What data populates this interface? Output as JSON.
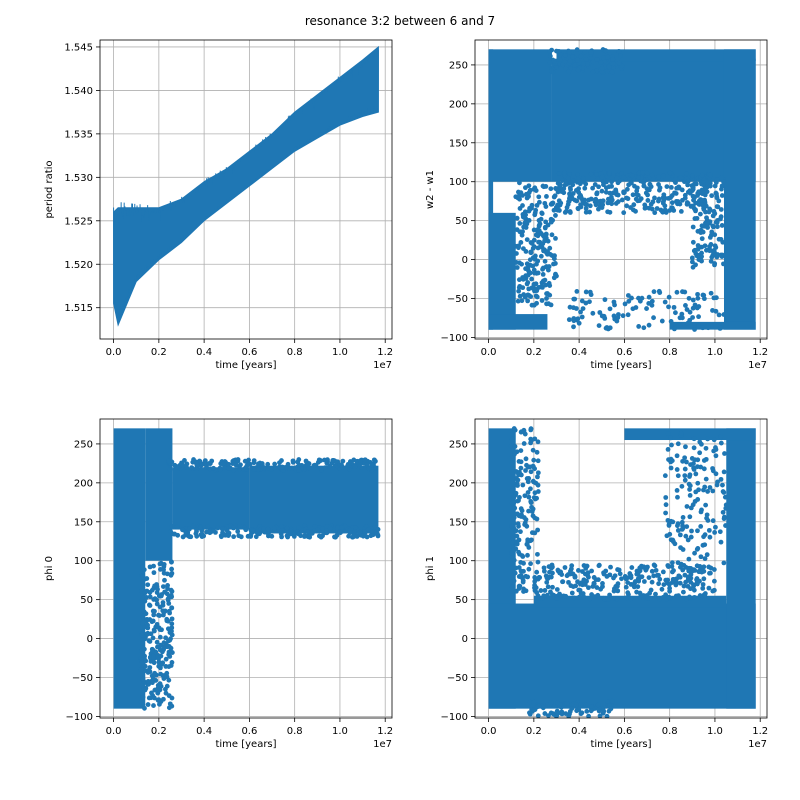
{
  "figure": {
    "title": "resonance 3:2 between 6 and 7"
  },
  "colors": {
    "series": "#1f77b4",
    "grid": "#b0b0b0",
    "axis": "#000000"
  },
  "chart_data": [
    {
      "id": "period-ratio",
      "type": "line",
      "title": "",
      "xlabel": "time [years]",
      "ylabel": "period ratio",
      "x_offset_label": "1e7",
      "xlim": [
        -0.06,
        1.23
      ],
      "ylim": [
        1.5114,
        1.5458
      ],
      "xticks": [
        0.0,
        0.2,
        0.4,
        0.6,
        0.8,
        1.0,
        1.2
      ],
      "xtick_labels": [
        "0.0",
        "0.2",
        "0.4",
        "0.6",
        "0.8",
        "1.0",
        "1.2"
      ],
      "yticks": [
        1.515,
        1.52,
        1.525,
        1.53,
        1.535,
        1.54,
        1.545
      ],
      "ytick_labels": [
        "1.515",
        "1.520",
        "1.525",
        "1.530",
        "1.535",
        "1.540",
        "1.545"
      ],
      "grid": true,
      "series": [
        {
          "envelope": [
            {
              "x": 0.0,
              "lo": 1.5155,
              "hi": 1.526
            },
            {
              "x": 0.02,
              "lo": 1.513,
              "hi": 1.5265
            },
            {
              "x": 0.1,
              "lo": 1.518,
              "hi": 1.5265
            },
            {
              "x": 0.2,
              "lo": 1.5205,
              "hi": 1.5265
            },
            {
              "x": 0.3,
              "lo": 1.5225,
              "hi": 1.5275
            },
            {
              "x": 0.4,
              "lo": 1.525,
              "hi": 1.5295
            },
            {
              "x": 0.5,
              "lo": 1.527,
              "hi": 1.531
            },
            {
              "x": 0.6,
              "lo": 1.529,
              "hi": 1.533
            },
            {
              "x": 0.7,
              "lo": 1.531,
              "hi": 1.535
            },
            {
              "x": 0.8,
              "lo": 1.533,
              "hi": 1.5375
            },
            {
              "x": 0.9,
              "lo": 1.5345,
              "hi": 1.5395
            },
            {
              "x": 1.0,
              "lo": 1.536,
              "hi": 1.5415
            },
            {
              "x": 1.1,
              "lo": 1.537,
              "hi": 1.5435
            },
            {
              "x": 1.17,
              "lo": 1.5375,
              "hi": 1.545
            }
          ]
        }
      ]
    },
    {
      "id": "w2-w1",
      "type": "scatter",
      "title": "",
      "xlabel": "time [years]",
      "ylabel": "w2 - w1",
      "x_offset_label": "1e7",
      "xlim": [
        -0.06,
        1.23
      ],
      "ylim": [
        -102,
        282
      ],
      "xticks": [
        0.0,
        0.2,
        0.4,
        0.6,
        0.8,
        1.0,
        1.2
      ],
      "xtick_labels": [
        "0.0",
        "0.2",
        "0.4",
        "0.6",
        "0.8",
        "1.0",
        "1.2"
      ],
      "yticks": [
        -100,
        -50,
        0,
        50,
        100,
        150,
        200,
        250
      ],
      "ytick_labels": [
        "−100",
        "−50",
        "0",
        "50",
        "100",
        "150",
        "200",
        "250"
      ],
      "grid": true,
      "series": [
        {
          "bands": [
            {
              "x0": 0.0,
              "x1": 0.02,
              "y0": -90,
              "y1": 270
            },
            {
              "x0": 0.0,
              "x1": 0.12,
              "y0": -90,
              "y1": 60
            },
            {
              "x0": 0.0,
              "x1": 0.28,
              "y0": 100,
              "y1": 270
            },
            {
              "x0": 0.28,
              "x1": 1.18,
              "y0": 100,
              "y1": 258
            },
            {
              "x0": 0.3,
              "x1": 1.18,
              "y0": 255,
              "y1": 270
            },
            {
              "x0": 1.04,
              "x1": 1.18,
              "y0": -90,
              "y1": 270
            },
            {
              "x0": 0.0,
              "x1": 0.26,
              "y0": -90,
              "y1": -70
            },
            {
              "x0": 0.8,
              "x1": 1.18,
              "y0": -90,
              "y1": -80
            }
          ],
          "scatter_regions": [
            {
              "x0": 0.12,
              "x1": 0.3,
              "y0": -60,
              "y1": 100,
              "n": 220
            },
            {
              "x0": 0.3,
              "x1": 0.98,
              "y0": 60,
              "y1": 112,
              "n": 320
            },
            {
              "x0": 0.9,
              "x1": 1.04,
              "y0": -10,
              "y1": 110,
              "n": 140
            },
            {
              "x0": 0.35,
              "x1": 1.04,
              "y0": -90,
              "y1": -40,
              "n": 110
            },
            {
              "x0": 0.27,
              "x1": 0.6,
              "y0": 240,
              "y1": 270,
              "n": 90
            }
          ]
        }
      ]
    },
    {
      "id": "phi-0",
      "type": "scatter",
      "title": "",
      "xlabel": "time [years]",
      "ylabel": "phi 0",
      "x_offset_label": "1e7",
      "xlim": [
        -0.06,
        1.23
      ],
      "ylim": [
        -102,
        282
      ],
      "xticks": [
        0.0,
        0.2,
        0.4,
        0.6,
        0.8,
        1.0,
        1.2
      ],
      "xtick_labels": [
        "0.0",
        "0.2",
        "0.4",
        "0.6",
        "0.8",
        "1.0",
        "1.2"
      ],
      "yticks": [
        -100,
        -50,
        0,
        50,
        100,
        150,
        200,
        250
      ],
      "ytick_labels": [
        "−100",
        "−50",
        "0",
        "50",
        "100",
        "150",
        "200",
        "250"
      ],
      "grid": true,
      "series": [
        {
          "bands": [
            {
              "x0": 0.0,
              "x1": 0.14,
              "y0": -90,
              "y1": 270
            },
            {
              "x0": 0.14,
              "x1": 0.26,
              "y0": 100,
              "y1": 270
            },
            {
              "x0": 0.26,
              "x1": 0.6,
              "y0": 140,
              "y1": 220
            },
            {
              "x0": 0.6,
              "x1": 1.17,
              "y0": 135,
              "y1": 222
            }
          ],
          "scatter_regions": [
            {
              "x0": 0.12,
              "x1": 0.26,
              "y0": -90,
              "y1": 100,
              "n": 260
            },
            {
              "x0": 0.24,
              "x1": 1.17,
              "y0": 130,
              "y1": 145,
              "n": 200
            },
            {
              "x0": 0.24,
              "x1": 1.17,
              "y0": 216,
              "y1": 230,
              "n": 200
            }
          ]
        }
      ]
    },
    {
      "id": "phi-1",
      "type": "scatter",
      "title": "",
      "xlabel": "time [years]",
      "ylabel": "phi 1",
      "x_offset_label": "1e7",
      "xlim": [
        -0.06,
        1.23
      ],
      "ylim": [
        -102,
        282
      ],
      "xticks": [
        0.0,
        0.2,
        0.4,
        0.6,
        0.8,
        1.0,
        1.2
      ],
      "xtick_labels": [
        "0.0",
        "0.2",
        "0.4",
        "0.6",
        "0.8",
        "1.0",
        "1.2"
      ],
      "yticks": [
        -100,
        -50,
        0,
        50,
        100,
        150,
        200,
        250
      ],
      "ytick_labels": [
        "−100",
        "−50",
        "0",
        "50",
        "100",
        "150",
        "200",
        "250"
      ],
      "grid": true,
      "series": [
        {
          "bands": [
            {
              "x0": 0.0,
              "x1": 0.12,
              "y0": -90,
              "y1": 270
            },
            {
              "x0": 0.0,
              "x1": 1.18,
              "y0": -90,
              "y1": 45
            },
            {
              "x0": 1.05,
              "x1": 1.18,
              "y0": -90,
              "y1": 270
            },
            {
              "x0": 0.6,
              "x1": 1.18,
              "y0": 255,
              "y1": 270
            },
            {
              "x0": 0.2,
              "x1": 1.05,
              "y0": 40,
              "y1": 55
            }
          ],
          "scatter_regions": [
            {
              "x0": 0.1,
              "x1": 0.22,
              "y0": 60,
              "y1": 270,
              "n": 170
            },
            {
              "x0": 0.2,
              "x1": 1.0,
              "y0": 50,
              "y1": 95,
              "n": 280
            },
            {
              "x0": 0.78,
              "x1": 1.05,
              "y0": 90,
              "y1": 265,
              "n": 160
            },
            {
              "x0": 0.18,
              "x1": 0.55,
              "y0": -100,
              "y1": -80,
              "n": 80
            }
          ]
        }
      ]
    }
  ]
}
